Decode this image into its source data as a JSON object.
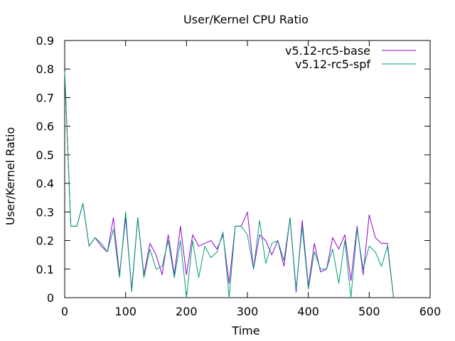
{
  "chart_data": {
    "type": "line",
    "title": "User/Kernel CPU Ratio",
    "xlabel": "Time",
    "ylabel": "User/Kernel Ratio",
    "xlim": [
      0,
      600
    ],
    "ylim": [
      0,
      0.9
    ],
    "xticks": [
      0,
      100,
      200,
      300,
      400,
      500,
      600
    ],
    "yticks": [
      0,
      0.1,
      0.2,
      0.3,
      0.4,
      0.5,
      0.6,
      0.7,
      0.8,
      0.9
    ],
    "grid": false,
    "legend": "top-right",
    "series": [
      {
        "name": "v5.12-rc5-base",
        "color": "#9400d3",
        "x": [
          0,
          10,
          20,
          30,
          40,
          50,
          60,
          70,
          80,
          90,
          100,
          110,
          120,
          130,
          140,
          150,
          160,
          170,
          180,
          190,
          200,
          210,
          220,
          230,
          240,
          250,
          260,
          270,
          280,
          290,
          300,
          310,
          320,
          330,
          340,
          350,
          360,
          370,
          380,
          390,
          400,
          410,
          420,
          430,
          440,
          450,
          460,
          470,
          480,
          490,
          500,
          510,
          520,
          530,
          540
        ],
        "y": [
          0.79,
          0.25,
          0.25,
          0.33,
          0.18,
          0.21,
          0.18,
          0.16,
          0.28,
          0.08,
          0.28,
          0.03,
          0.28,
          0.08,
          0.19,
          0.15,
          0.08,
          0.22,
          0.08,
          0.25,
          0.08,
          0.22,
          0.18,
          0.19,
          0.2,
          0.17,
          0.22,
          0.05,
          0.25,
          0.25,
          0.3,
          0.1,
          0.22,
          0.2,
          0.15,
          0.2,
          0.11,
          0.28,
          0.02,
          0.27,
          0.04,
          0.19,
          0.09,
          0.1,
          0.21,
          0.17,
          0.22,
          0.06,
          0.25,
          0.08,
          0.29,
          0.21,
          0.19,
          0.19,
          0.0
        ]
      },
      {
        "name": "v5.12-rc5-spf",
        "color": "#009e73",
        "x": [
          0,
          10,
          20,
          30,
          40,
          50,
          60,
          70,
          80,
          90,
          100,
          110,
          120,
          130,
          140,
          150,
          160,
          170,
          180,
          190,
          200,
          210,
          220,
          230,
          240,
          250,
          260,
          270,
          280,
          290,
          300,
          310,
          320,
          330,
          340,
          350,
          360,
          370,
          380,
          390,
          400,
          410,
          420,
          430,
          440,
          450,
          460,
          470,
          480,
          490,
          500,
          510,
          520,
          530,
          540
        ],
        "y": [
          0.79,
          0.25,
          0.25,
          0.33,
          0.18,
          0.21,
          0.19,
          0.16,
          0.24,
          0.07,
          0.3,
          0.02,
          0.28,
          0.07,
          0.17,
          0.1,
          0.11,
          0.2,
          0.07,
          0.2,
          0.0,
          0.2,
          0.07,
          0.18,
          0.14,
          0.16,
          0.23,
          0.0,
          0.25,
          0.25,
          0.22,
          0.1,
          0.27,
          0.12,
          0.19,
          0.2,
          0.13,
          0.28,
          0.03,
          0.25,
          0.03,
          0.16,
          0.1,
          0.1,
          0.17,
          0.05,
          0.2,
          0.0,
          0.24,
          0.1,
          0.18,
          0.16,
          0.11,
          0.18,
          0.0
        ]
      }
    ]
  }
}
